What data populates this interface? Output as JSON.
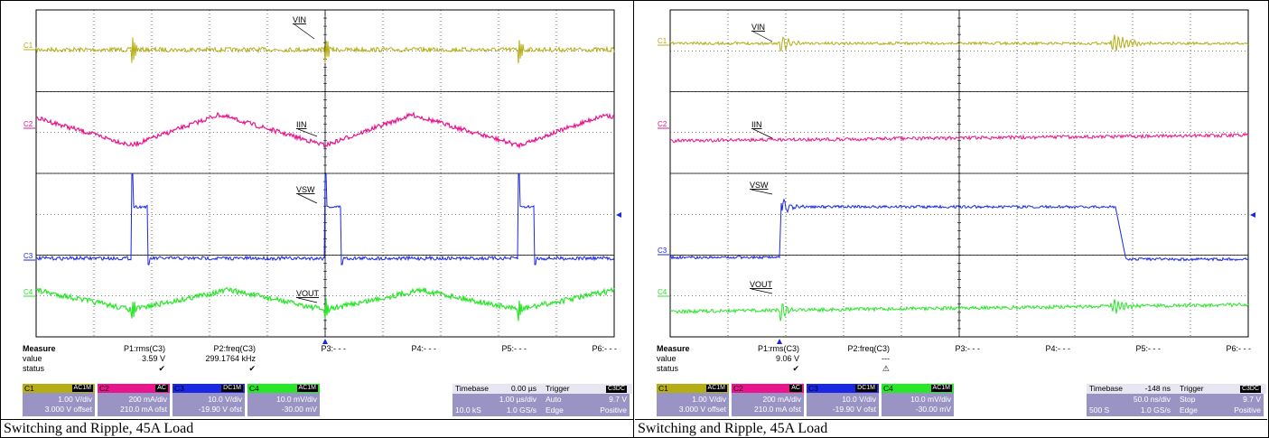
{
  "chart_data": [
    {
      "type": "line",
      "panel": "left",
      "channels": [
        {
          "id": "C1",
          "name": "VIN",
          "color": "#b5ad14"
        },
        {
          "id": "C2",
          "name": "IIN",
          "color": "#e8158c"
        },
        {
          "id": "C3",
          "name": "VSW",
          "color": "#1a28e6"
        },
        {
          "id": "C4",
          "name": "VOUT",
          "color": "#28e628"
        }
      ],
      "measure": {
        "title": "Measure",
        "value_label": "value",
        "status_label": "status",
        "columns": [
          {
            "name": "P1:rms(C3)",
            "value": "3.59 V",
            "status": "✔"
          },
          {
            "name": "P2:freq(C3)",
            "value": "299.1764 kHz",
            "status": "✔"
          },
          {
            "name": "P3:- - -",
            "value": "",
            "status": ""
          },
          {
            "name": "P4:- - -",
            "value": "",
            "status": ""
          },
          {
            "name": "P5:- - -",
            "value": "",
            "status": ""
          },
          {
            "name": "P6:- - -",
            "value": "",
            "status": ""
          }
        ]
      },
      "channel_settings": [
        {
          "id": "C1",
          "tag": "AC1M",
          "scale": "1.00 V/div",
          "offset": "3.000 V offset",
          "head_color": "#b5ad14"
        },
        {
          "id": "C2",
          "tag": "AC",
          "scale": "200 mA/div",
          "offset": "210.0 mA ofst",
          "head_color": "#e8158c"
        },
        {
          "id": "C3",
          "tag": "DC1M",
          "scale": "10.0 V/div",
          "offset": "-19.90 V ofst",
          "head_color": "#1a28e6"
        },
        {
          "id": "C4",
          "tag": "AC1M",
          "scale": "10.0 mV/div",
          "offset": "-30.00 mV",
          "head_color": "#28e628"
        }
      ],
      "timebase": {
        "label": "Timebase",
        "delay": "0.00 µs",
        "per_div": "1.00 µs/div",
        "samples": "10.0 kS",
        "rate": "1.0 GS/s"
      },
      "trigger": {
        "label": "Trigger",
        "source": "C3",
        "coupling": "DC",
        "mode": "Auto",
        "level": "9.7 V",
        "type": "Edge",
        "slope": "Positive"
      },
      "caption": "Switching and Ripple, 45A Load"
    },
    {
      "type": "line",
      "panel": "right",
      "channels": [
        {
          "id": "C1",
          "name": "VIN",
          "color": "#b5ad14"
        },
        {
          "id": "C2",
          "name": "IIN",
          "color": "#e8158c"
        },
        {
          "id": "C3",
          "name": "VSW",
          "color": "#1a28e6"
        },
        {
          "id": "C4",
          "name": "VOUT",
          "color": "#28e628"
        }
      ],
      "measure": {
        "title": "Measure",
        "value_label": "value",
        "status_label": "status",
        "columns": [
          {
            "name": "P1:rms(C3)",
            "value": "9.06 V",
            "status": "✔"
          },
          {
            "name": "P2:freq(C3)",
            "value": "---",
            "status": "⚠"
          },
          {
            "name": "P3:- - -",
            "value": "",
            "status": ""
          },
          {
            "name": "P4:- - -",
            "value": "",
            "status": ""
          },
          {
            "name": "P5:- - -",
            "value": "",
            "status": ""
          },
          {
            "name": "P6:- - -",
            "value": "",
            "status": ""
          }
        ]
      },
      "channel_settings": [
        {
          "id": "C1",
          "tag": "AC1M",
          "scale": "1.00 V/div",
          "offset": "3.000 V offset",
          "head_color": "#b5ad14"
        },
        {
          "id": "C2",
          "tag": "AC",
          "scale": "200 mA/div",
          "offset": "210.0 mA ofst",
          "head_color": "#e8158c"
        },
        {
          "id": "C3",
          "tag": "DC1M",
          "scale": "10.0 V/div",
          "offset": "-19.90 V ofst",
          "head_color": "#1a28e6"
        },
        {
          "id": "C4",
          "tag": "AC1M",
          "scale": "10.0 mV/div",
          "offset": "-30.00 mV",
          "head_color": "#28e628"
        }
      ],
      "timebase": {
        "label": "Timebase",
        "delay": "-148 ns",
        "per_div": "50.0 ns/div",
        "samples": "500 S",
        "rate": "1.0 GS/s"
      },
      "trigger": {
        "label": "Trigger",
        "source": "C3",
        "coupling": "DC",
        "mode": "Stop",
        "level": "9.7 V",
        "type": "Edge",
        "slope": "Positive"
      },
      "caption": "Switching and Ripple, 45A Load"
    }
  ]
}
